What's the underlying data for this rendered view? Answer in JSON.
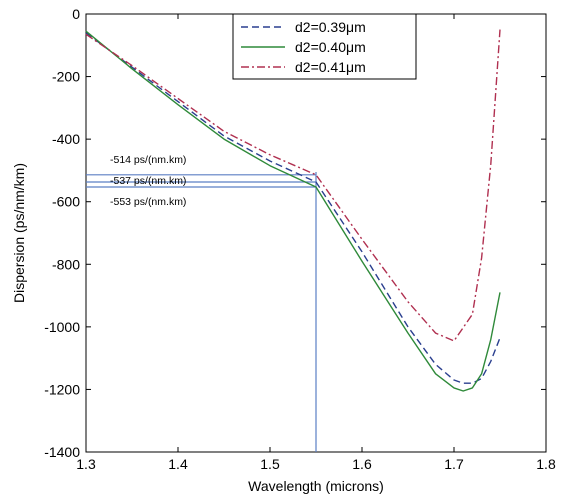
{
  "chart_data": {
    "type": "line",
    "xlabel": "Wavelength (microns)",
    "ylabel": "Dispersion (ps/nm/km)",
    "xlim": [
      1.3,
      1.8
    ],
    "ylim": [
      -1400,
      0
    ],
    "xticks": [
      1.3,
      1.4,
      1.5,
      1.6,
      1.7,
      1.8
    ],
    "yticks": [
      0,
      -200,
      -400,
      -600,
      -800,
      -1000,
      -1200,
      -1400
    ],
    "xtick_labels": [
      "1.3",
      "1.4",
      "1.5",
      "1.6",
      "1.7",
      "1.8"
    ],
    "ytick_labels": [
      "0",
      "-200",
      "-400",
      "-600",
      "-800",
      "-1000",
      "-1200",
      "-1400"
    ],
    "grid": false,
    "legend_position": "top-right",
    "series": [
      {
        "name": "d2=0.39μm",
        "color": "#2a3f8f",
        "dash": "dashed",
        "x": [
          1.3,
          1.35,
          1.4,
          1.45,
          1.5,
          1.55,
          1.6,
          1.65,
          1.68,
          1.7,
          1.71,
          1.72,
          1.73,
          1.74,
          1.75
        ],
        "y": [
          -60,
          -170,
          -280,
          -390,
          -470,
          -537,
          -760,
          -1000,
          -1120,
          -1170,
          -1180,
          -1180,
          -1165,
          -1110,
          -1035
        ]
      },
      {
        "name": "d2=0.40μm",
        "color": "#2f8a3a",
        "dash": "solid",
        "x": [
          1.3,
          1.35,
          1.4,
          1.45,
          1.5,
          1.55,
          1.6,
          1.65,
          1.68,
          1.7,
          1.71,
          1.72,
          1.73,
          1.74,
          1.75
        ],
        "y": [
          -55,
          -175,
          -290,
          -400,
          -485,
          -553,
          -790,
          -1020,
          -1150,
          -1195,
          -1205,
          -1195,
          -1150,
          -1040,
          -890
        ]
      },
      {
        "name": "d2=0.41μm",
        "color": "#b03050",
        "dash": "dashdot",
        "x": [
          1.3,
          1.35,
          1.4,
          1.45,
          1.5,
          1.55,
          1.6,
          1.65,
          1.68,
          1.7,
          1.72,
          1.73,
          1.74,
          1.75
        ],
        "y": [
          -65,
          -165,
          -270,
          -375,
          -450,
          -514,
          -720,
          -920,
          -1020,
          -1045,
          -960,
          -780,
          -480,
          -50
        ]
      }
    ],
    "annotations": [
      {
        "text": "-514 ps/(nm.km)",
        "y": -514
      },
      {
        "text": "-537 ps/(nm.km)",
        "y": -537
      },
      {
        "text": "-553 ps/(nm.km)",
        "y": -553
      }
    ],
    "reference_x": 1.55
  }
}
